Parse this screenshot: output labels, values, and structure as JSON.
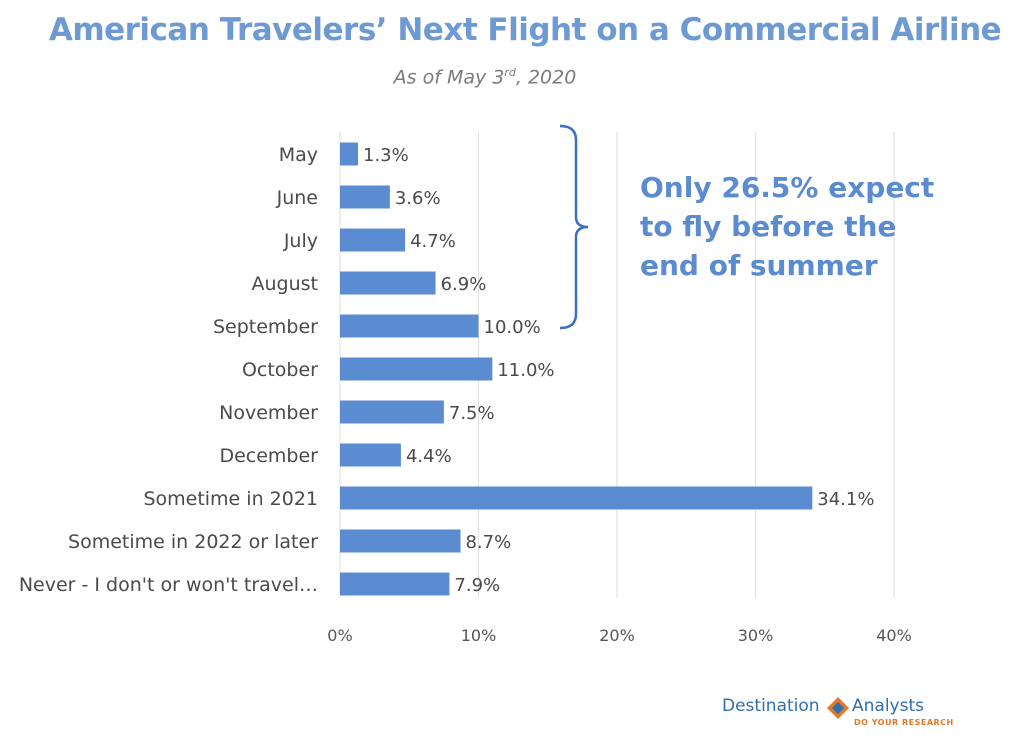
{
  "header": {
    "title": "American Travelers’ Next Flight on a Commercial Airline",
    "subtitle_pre": "As of May 3",
    "subtitle_sup": "rd",
    "subtitle_post": ", 2020"
  },
  "callout": {
    "text": "Only 26.5% expect to fly before the end of summer",
    "color": "#5b8bd0"
  },
  "logo": {
    "left": "Destination",
    "right": "Analysts",
    "tagline": "DO YOUR RESEARCH"
  },
  "colors": {
    "bar": "#5b8bd0",
    "title": "#6d9ad3",
    "grid": "#e3e3e3",
    "bracket": "#3a6fc2"
  },
  "chart_data": {
    "type": "bar",
    "orientation": "horizontal",
    "title": "American Travelers’ Next Flight on a Commercial Airline",
    "subtitle": "As of May 3rd, 2020",
    "categories": [
      "May",
      "June",
      "July",
      "August",
      "September",
      "October",
      "November",
      "December",
      "Sometime in 2021",
      "Sometime in 2022 or later",
      "Never - I don't or won't travel…"
    ],
    "values": [
      1.3,
      3.6,
      4.7,
      6.9,
      10.0,
      11.0,
      7.5,
      4.4,
      34.1,
      8.7,
      7.9
    ],
    "value_labels": [
      "1.3%",
      "3.6%",
      "4.7%",
      "6.9%",
      "10.0%",
      "11.0%",
      "7.5%",
      "4.4%",
      "34.1%",
      "8.7%",
      "7.9%"
    ],
    "xlim": [
      0,
      40
    ],
    "xticks": [
      0,
      10,
      20,
      30,
      40
    ],
    "xtick_labels": [
      "0%",
      "10%",
      "20%",
      "30%",
      "40%"
    ],
    "grid": "vertical",
    "annotation": {
      "text": "Only 26.5% expect to fly before the end of summer",
      "spans_categories": [
        "May",
        "June",
        "July",
        "August",
        "September"
      ]
    }
  }
}
